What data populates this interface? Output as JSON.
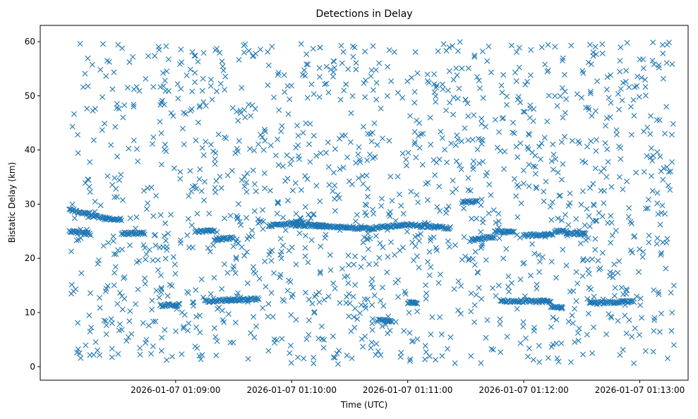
{
  "chart_data": {
    "type": "scatter",
    "title": "Detections in Delay",
    "xlabel": "Time (UTC)",
    "ylabel": "Bistatic Delay (km)",
    "marker": "x",
    "color": "#1f77b4",
    "grid": false,
    "xlim": [
      "2026-01-07 01:07:50",
      "2026-01-07 01:13:25"
    ],
    "ylim": [
      -2.5,
      63
    ],
    "xticks": [
      "2026-01-07 01:09:00",
      "2026-01-07 01:10:00",
      "2026-01-07 01:11:00",
      "2026-01-07 01:12:00",
      "2026-01-07 01:13:00"
    ],
    "yticks": [
      0,
      10,
      20,
      30,
      40,
      50,
      60
    ],
    "tracks": [
      {
        "x": [
          "2026-01-07 01:08:05",
          "2026-01-07 01:08:24"
        ],
        "y": [
          29.0,
          27.3
        ]
      },
      {
        "x": [
          "2026-01-07 01:08:24",
          "2026-01-07 01:08:32"
        ],
        "y": [
          27.3,
          27.2
        ]
      },
      {
        "x": [
          "2026-01-07 01:08:05",
          "2026-01-07 01:08:16"
        ],
        "y": [
          25.0,
          24.5
        ]
      },
      {
        "x": [
          "2026-01-07 01:08:32",
          "2026-01-07 01:08:44"
        ],
        "y": [
          24.6,
          24.6
        ]
      },
      {
        "x": [
          "2026-01-07 01:09:10",
          "2026-01-07 01:09:20"
        ],
        "y": [
          25.0,
          25.0
        ]
      },
      {
        "x": [
          "2026-01-07 01:09:20",
          "2026-01-07 01:09:30"
        ],
        "y": [
          23.5,
          23.8
        ]
      },
      {
        "x": [
          "2026-01-07 01:09:48",
          "2026-01-07 01:10:06"
        ],
        "y": [
          26.0,
          26.8
        ]
      },
      {
        "x": [
          "2026-01-07 01:10:00",
          "2026-01-07 01:10:18"
        ],
        "y": [
          26.2,
          26.0
        ]
      },
      {
        "x": [
          "2026-01-07 01:10:12",
          "2026-01-07 01:10:40"
        ],
        "y": [
          26.0,
          25.5
        ]
      },
      {
        "x": [
          "2026-01-07 01:10:40",
          "2026-01-07 01:10:58"
        ],
        "y": [
          25.5,
          26.2
        ]
      },
      {
        "x": [
          "2026-01-07 01:10:58",
          "2026-01-07 01:11:22"
        ],
        "y": [
          26.2,
          25.6
        ]
      },
      {
        "x": [
          "2026-01-07 01:11:28",
          "2026-01-07 01:11:36"
        ],
        "y": [
          30.4,
          30.4
        ]
      },
      {
        "x": [
          "2026-01-07 01:11:33",
          "2026-01-07 01:11:45"
        ],
        "y": [
          23.5,
          24.0
        ]
      },
      {
        "x": [
          "2026-01-07 01:11:45",
          "2026-01-07 01:11:55"
        ],
        "y": [
          25.0,
          24.8
        ]
      },
      {
        "x": [
          "2026-01-07 01:12:00",
          "2026-01-07 01:12:15"
        ],
        "y": [
          24.2,
          24.5
        ]
      },
      {
        "x": [
          "2026-01-07 01:12:16",
          "2026-01-07 01:12:22"
        ],
        "y": [
          25.0,
          25.0
        ]
      },
      {
        "x": [
          "2026-01-07 01:12:22",
          "2026-01-07 01:12:32"
        ],
        "y": [
          24.6,
          24.5
        ]
      },
      {
        "x": [
          "2026-01-07 01:08:52",
          "2026-01-07 01:09:02"
        ],
        "y": [
          11.3,
          11.4
        ]
      },
      {
        "x": [
          "2026-01-07 01:09:15",
          "2026-01-07 01:09:43"
        ],
        "y": [
          12.1,
          12.5
        ]
      },
      {
        "x": [
          "2026-01-07 01:10:44",
          "2026-01-07 01:10:52"
        ],
        "y": [
          8.5,
          8.5
        ]
      },
      {
        "x": [
          "2026-01-07 01:11:00",
          "2026-01-07 01:11:05"
        ],
        "y": [
          11.8,
          11.8
        ]
      },
      {
        "x": [
          "2026-01-07 01:11:48",
          "2026-01-07 01:12:08"
        ],
        "y": [
          12.2,
          12.0
        ]
      },
      {
        "x": [
          "2026-01-07 01:12:08",
          "2026-01-07 01:12:14"
        ],
        "y": [
          12.1,
          12.1
        ]
      },
      {
        "x": [
          "2026-01-07 01:12:14",
          "2026-01-07 01:12:20"
        ],
        "y": [
          11.0,
          11.0
        ]
      },
      {
        "x": [
          "2026-01-07 01:12:34",
          "2026-01-07 01:12:57"
        ],
        "y": [
          11.7,
          12.1
        ]
      }
    ],
    "clutter": {
      "x_range": [
        "2026-01-07 01:08:05",
        "2026-01-07 01:13:18"
      ],
      "y_range": [
        0.5,
        60
      ]
    }
  }
}
